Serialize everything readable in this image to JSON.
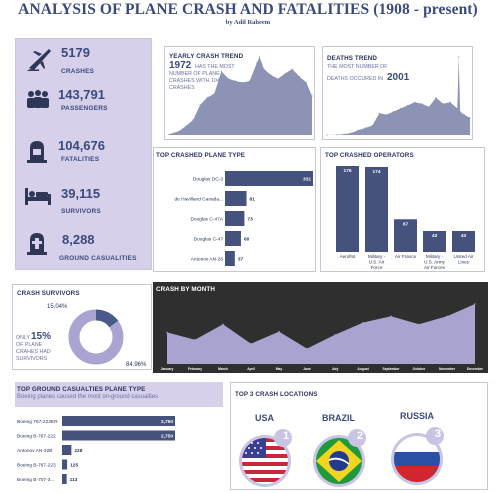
{
  "header": {
    "title": "ANALYSIS OF PLANE CRASH AND FATALITIES (1908 - present)",
    "byline": "by Adil Raheem"
  },
  "stats": [
    {
      "value": "5179",
      "label": "CRASHES",
      "icon": "crashing-plane-icon"
    },
    {
      "value": "143,791",
      "label": "PASSENGERS",
      "icon": "passengers-icon"
    },
    {
      "value": "104,676",
      "label": "FATALITIES",
      "icon": "grave-icon"
    },
    {
      "value": "39,115",
      "label": "SURVIVORS",
      "icon": "hospital-bed-icon"
    },
    {
      "value": "8,288",
      "label": "GROUND CASUALITIES",
      "icon": "ground-grave-icon"
    }
  ],
  "yearly_trend": {
    "title": "YEARLY CRASH TREND",
    "highlight": "1972",
    "text_lines": [
      "HAS THE MOST",
      "NUMBER OF PLANE",
      "CRASHES WITH 104",
      "CRASHES"
    ]
  },
  "deaths_trend": {
    "title": "DEATHS TREND",
    "text_lines": [
      "THE MOST NUMBER OF",
      "DEATHS OCCURED IN"
    ],
    "highlight": "2001"
  },
  "colors": {
    "bar": "#46527e",
    "lavender": "#d6d0ea",
    "area": "#8c93b5",
    "month_bg": "#2f2f30",
    "month_area": "#a8a3cf",
    "donut_light": "#a9a4d2",
    "donut_dark": "#4a5a8a"
  },
  "chart_data": [
    {
      "id": "top-crashed-plane-type",
      "type": "bar",
      "orientation": "horizontal",
      "title": "TOP CRASHED PLANE TYPE",
      "categories": [
        "Douglas DC-3",
        "de Havilland Canada...",
        "Douglas C-47A",
        "Douglas C-47",
        "Antonov AN-26"
      ],
      "values": [
        331,
        81,
        73,
        60,
        37
      ],
      "value_labels": [
        "331",
        "81",
        "73",
        "60",
        "37"
      ]
    },
    {
      "id": "top-crashed-operators",
      "type": "bar",
      "orientation": "vertical",
      "title": "TOP CRASHED OPERATORS",
      "categories": [
        "Aeroflot",
        "Military - U.S. Air Force",
        "Air France",
        "Military - U.S. Army Air Forces",
        "United Air Lines"
      ],
      "category_lines": [
        [
          "Aeroflot"
        ],
        [
          "Military -",
          "U.S. Air",
          "Force"
        ],
        [
          "Air France"
        ],
        [
          "Military -",
          "U.S. Army",
          "Air Forces"
        ],
        [
          "United Air",
          "Lines"
        ]
      ],
      "values": [
        176,
        174,
        67,
        43,
        43
      ],
      "value_labels": [
        "176",
        "174",
        "67",
        "43",
        "43"
      ]
    },
    {
      "id": "crash-survivors",
      "type": "pie",
      "title": "CRASH SURVIVORS",
      "labels": [
        "Survived",
        "Not survived"
      ],
      "values": [
        15.04,
        84.96
      ],
      "value_labels": [
        "15.04%",
        "84.96%"
      ],
      "note_prefix": "ONLY",
      "note_value": "15%",
      "note_lines": [
        "OF PLANE",
        "CRAHES HAD",
        "SURVIVORS"
      ]
    },
    {
      "id": "crash-by-month",
      "type": "area",
      "title": "CRASH BY MONTH",
      "categories": [
        "January",
        "February",
        "March",
        "April",
        "May",
        "June",
        "July",
        "August",
        "September",
        "October",
        "November",
        "December"
      ],
      "values": [
        378,
        360,
        398,
        350,
        380,
        338,
        372,
        402,
        418,
        398,
        418,
        448
      ]
    },
    {
      "id": "top-ground-casualties",
      "type": "bar",
      "orientation": "horizontal",
      "title": "TOP GROUND CASUALTIES PLANE TYPE",
      "subtitle": "Boeing planes caused the most on-ground casualties",
      "categories": [
        "Boeing 767-223ER",
        "Boeing B-767-222",
        "Antonov AN-32B",
        "Boeing B-767-223",
        "Boeing B-707-3..."
      ],
      "values": [
        2750,
        2750,
        228,
        125,
        113
      ],
      "value_labels": [
        "2,750",
        "2,750",
        "228",
        "125",
        "113"
      ]
    },
    {
      "id": "yearly-crash-trend",
      "type": "area",
      "x": [
        1908,
        1915,
        1920,
        1925,
        1930,
        1935,
        1940,
        1945,
        1950,
        1955,
        1960,
        1965,
        1970,
        1972,
        1975,
        1980,
        1985,
        1990,
        1995,
        2000,
        2005,
        2009
      ],
      "values": [
        1,
        5,
        12,
        20,
        40,
        50,
        55,
        85,
        75,
        72,
        70,
        72,
        96,
        104,
        88,
        80,
        75,
        82,
        88,
        78,
        70,
        52
      ]
    },
    {
      "id": "deaths-trend",
      "type": "area",
      "x": [
        1908,
        1915,
        1920,
        1925,
        1930,
        1935,
        1940,
        1945,
        1950,
        1955,
        1960,
        1965,
        1970,
        1975,
        1980,
        1985,
        1990,
        1995,
        2000,
        2001,
        2002,
        2005,
        2009
      ],
      "values": [
        1,
        20,
        60,
        120,
        300,
        450,
        600,
        1400,
        1300,
        1500,
        1700,
        1900,
        2100,
        2000,
        1800,
        2400,
        2000,
        2100,
        1700,
        5000,
        1500,
        1300,
        1100
      ]
    }
  ],
  "top3_locations": {
    "title": "TOP 3 CRASH LOCATIONS",
    "items": [
      {
        "name": "USA",
        "rank": "1",
        "flag": "usa-flag-icon"
      },
      {
        "name": "BRAZIL",
        "rank": "2",
        "flag": "brazil-flag-icon"
      },
      {
        "name": "RUSSIA",
        "rank": "3",
        "flag": "russia-flag-icon"
      }
    ]
  }
}
